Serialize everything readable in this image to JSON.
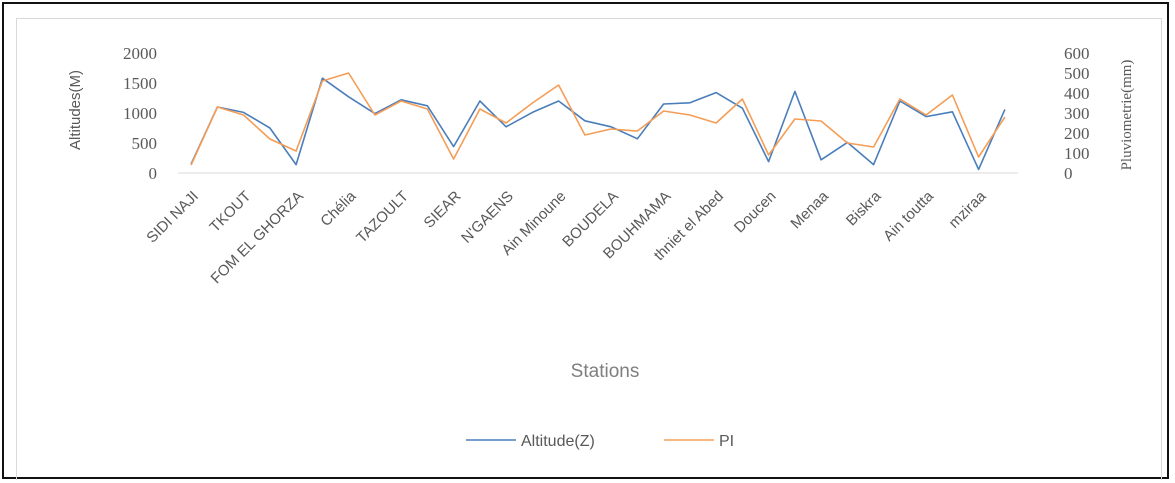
{
  "chart_data": {
    "type": "line",
    "xlabel": "Stations",
    "ylabel": "Altitudes(M)",
    "y2label": "Pluviometrie(mm)",
    "ylim": [
      0,
      2000
    ],
    "y2lim": [
      0,
      600
    ],
    "yticks": [
      "0",
      "500",
      "1000",
      "1500",
      "2000"
    ],
    "y2ticks": [
      "0",
      "100",
      "200",
      "300",
      "400",
      "500",
      "600"
    ],
    "category_labels": [
      "SIDI NAJI",
      "TKOUT",
      "FOM EL GHORZA",
      "Chélia",
      "TAZOULT",
      "SIEAR",
      "N'GAENS",
      "Ain Minoune",
      "BOUDELA",
      "BOUHMAMA",
      "thniet el Abed",
      "Doucen",
      "Menaa",
      "Biskra",
      "Ain toutta",
      "mziraa"
    ],
    "grid": false,
    "legend_position": "bottom",
    "series": [
      {
        "name": "Altitude(Z)",
        "axis": "left",
        "color": "#4a7ebb",
        "values": [
          150,
          1100,
          1010,
          750,
          140,
          1580,
          1270,
          990,
          1220,
          1120,
          440,
          1200,
          770,
          1010,
          1200,
          870,
          770,
          570,
          1150,
          1170,
          1340,
          1080,
          190,
          1360,
          220,
          510,
          140,
          1200,
          940,
          1020,
          60,
          1060
        ]
      },
      {
        "name": "PI",
        "axis": "right",
        "color": "#f59d56",
        "values": [
          40,
          330,
          290,
          170,
          110,
          460,
          500,
          290,
          360,
          320,
          70,
          320,
          250,
          350,
          440,
          190,
          220,
          210,
          310,
          290,
          250,
          370,
          90,
          270,
          260,
          150,
          130,
          370,
          290,
          390,
          80,
          280
        ]
      }
    ]
  }
}
